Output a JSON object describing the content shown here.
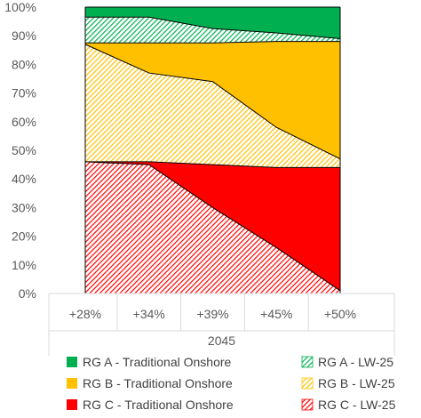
{
  "chart_data": {
    "type": "area",
    "stacked": "percent",
    "group_label": "2045",
    "categories": [
      "+28%",
      "+34%",
      "+39%",
      "+45%",
      "+50%"
    ],
    "y_ticks": [
      "0%",
      "10%",
      "20%",
      "30%",
      "40%",
      "50%",
      "60%",
      "70%",
      "80%",
      "90%",
      "100%"
    ],
    "ylim": [
      0,
      100
    ],
    "grid": false,
    "legend_position": "bottom",
    "series": [
      {
        "name": "RG C - LW-25",
        "values": [
          46,
          45,
          30,
          16,
          1
        ],
        "color": "#ff0000",
        "hatched": true,
        "legend_col": 1,
        "legend_row": 2
      },
      {
        "name": "RG C - Traditional Onshore",
        "values": [
          0,
          1,
          15,
          28,
          43
        ],
        "color": "#ff0000",
        "hatched": false,
        "legend_col": 0,
        "legend_row": 2
      },
      {
        "name": "RG B - LW-25",
        "values": [
          41,
          31,
          29,
          14,
          3
        ],
        "color": "#ffc000",
        "hatched": true,
        "legend_col": 1,
        "legend_row": 1
      },
      {
        "name": "RG B - Traditional Onshore",
        "values": [
          0.5,
          10.5,
          13.5,
          30,
          41
        ],
        "color": "#ffc000",
        "hatched": false,
        "legend_col": 0,
        "legend_row": 1
      },
      {
        "name": "RG A - LW-25",
        "values": [
          9,
          9,
          5,
          3,
          1
        ],
        "color": "#00b050",
        "hatched": true,
        "legend_col": 1,
        "legend_row": 0
      },
      {
        "name": "RG A - Traditional Onshore",
        "values": [
          3.5,
          3.5,
          7.5,
          9,
          11
        ],
        "color": "#00b050",
        "hatched": false,
        "legend_col": 0,
        "legend_row": 0
      }
    ]
  }
}
